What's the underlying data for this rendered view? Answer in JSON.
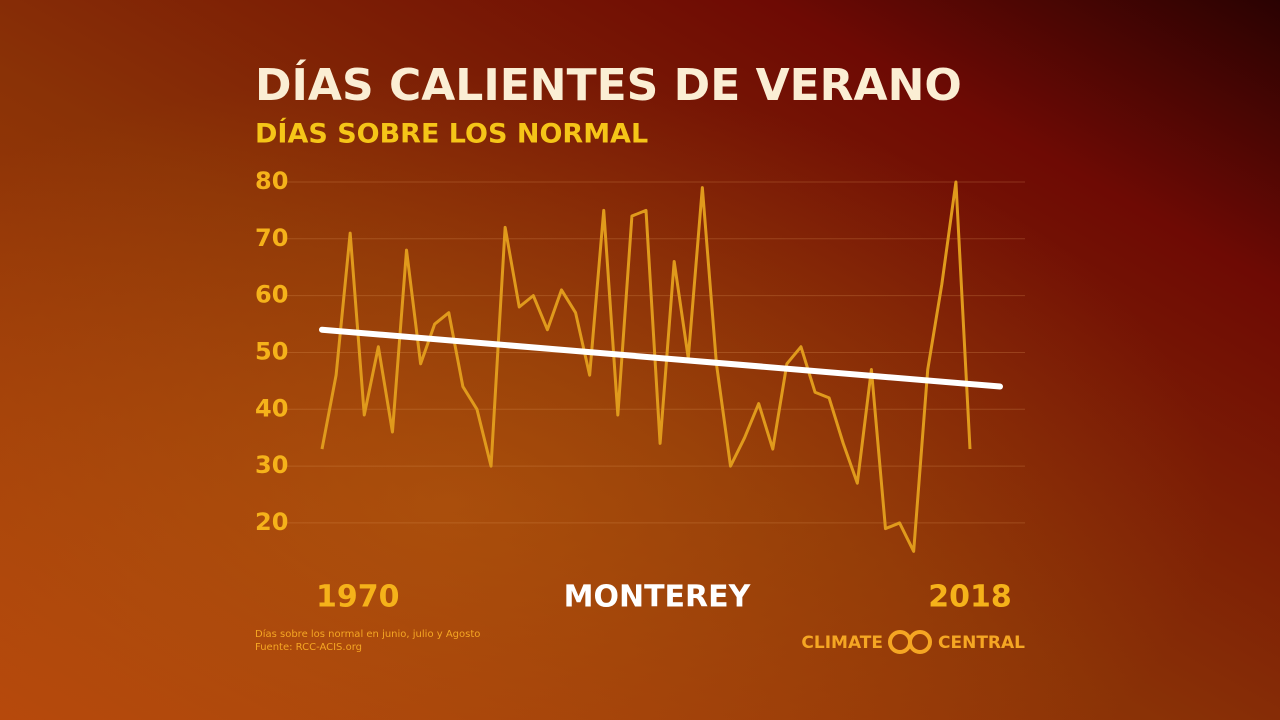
{
  "chart_data": {
    "type": "line",
    "title": "DÍAS CALIENTES DE VERANO",
    "subtitle": "DÍAS SOBRE LOS NORMAL",
    "location": "MONTEREY",
    "notes": [
      "Días sobre los normal en junio, julio y Agosto",
      "Fuente: RCC-ACIS.org"
    ],
    "logo": [
      "CLIMATE",
      "CENTRAL"
    ],
    "categories": [
      "1970",
      null,
      null,
      null,
      null,
      null,
      null,
      null,
      null,
      null,
      null,
      null,
      null,
      null,
      null,
      null,
      null,
      null,
      null,
      null,
      null,
      null,
      null,
      null,
      null,
      null,
      null,
      null,
      null,
      null,
      null,
      null,
      null,
      null,
      null,
      null,
      null,
      null,
      null,
      null,
      null,
      null,
      null,
      null,
      null,
      null,
      "2018"
    ],
    "series": [
      {
        "color": "#e09a1c",
        "values": [
          33,
          46,
          71,
          39,
          51,
          36,
          68,
          48,
          55,
          57,
          44,
          40,
          30,
          72,
          58,
          60,
          54,
          61,
          57,
          46,
          75,
          39,
          74,
          75,
          34,
          66,
          49,
          79,
          48,
          30,
          35,
          41,
          33,
          48,
          51,
          43,
          42,
          34,
          27,
          47,
          19,
          20,
          15,
          47,
          62,
          80,
          33
        ]
      }
    ],
    "trend": {
      "color": "#ffffff",
      "start": 54,
      "end": 44
    },
    "ylim": [
      12,
      82
    ],
    "yticks": [
      20,
      30,
      40,
      50,
      60,
      70,
      80
    ],
    "grid": true
  }
}
